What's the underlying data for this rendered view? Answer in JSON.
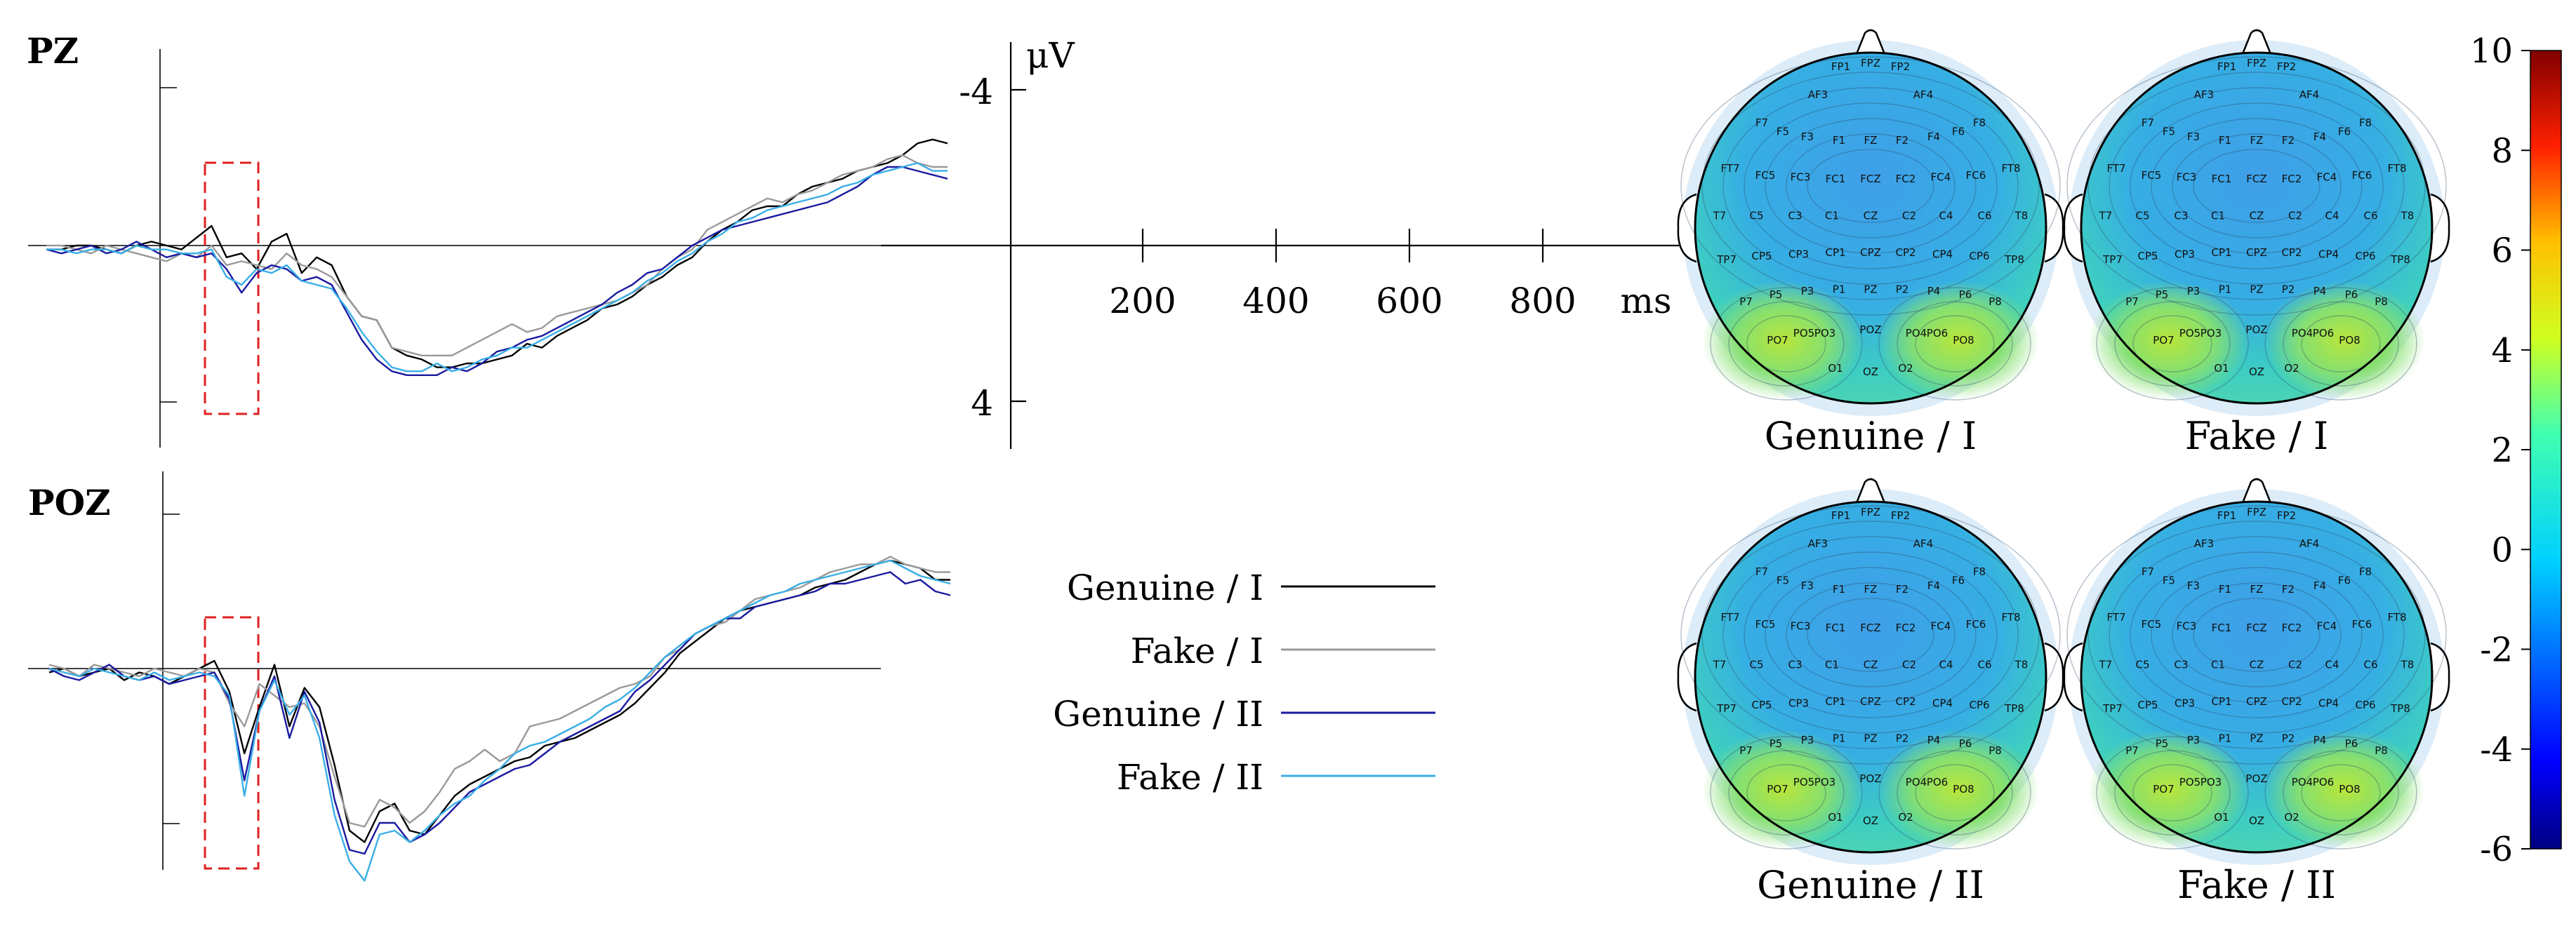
{
  "chart_data": [
    {
      "type": "line",
      "channel": "PZ",
      "x_unit": "ms",
      "y_unit": "μV",
      "y_inverted": true,
      "time_ms": [
        -200,
        -180,
        -160,
        -140,
        -120,
        -100,
        -80,
        -60,
        -40,
        -20,
        0,
        20,
        40,
        60,
        80,
        100,
        120,
        140,
        160,
        180,
        200,
        220,
        240,
        260,
        280,
        300,
        320,
        340,
        360,
        380,
        400,
        420,
        440,
        460,
        480,
        500,
        520,
        540,
        560,
        580,
        600,
        620,
        640,
        660,
        680,
        700,
        720,
        740,
        760,
        780,
        800,
        820,
        840,
        860,
        880,
        900,
        920,
        940,
        960,
        980,
        1000
      ],
      "highlight_window_ms": [
        70,
        150
      ],
      "series": [
        {
          "name": "Genuine / I",
          "color": "#000000",
          "values": [
            0.1,
            0.1,
            0.0,
            0.0,
            0.1,
            0.2,
            0.0,
            -0.1,
            0.0,
            0.1,
            -0.2,
            -0.5,
            0.3,
            0.2,
            0.6,
            -0.1,
            -0.3,
            0.7,
            0.3,
            0.5,
            1.3,
            1.8,
            1.9,
            2.6,
            2.8,
            2.9,
            3.1,
            3.1,
            3.0,
            3.0,
            2.9,
            2.8,
            2.5,
            2.6,
            2.3,
            2.1,
            1.9,
            1.6,
            1.5,
            1.3,
            1.0,
            0.8,
            0.5,
            0.3,
            -0.1,
            -0.4,
            -0.6,
            -0.9,
            -1.0,
            -1.0,
            -1.3,
            -1.5,
            -1.6,
            -1.7,
            -1.9,
            -2.0,
            -2.1,
            -2.3,
            -2.6,
            -2.7,
            -2.6
          ]
        },
        {
          "name": "Fake / I",
          "color": "#9a9a9a",
          "values": [
            0.0,
            0.0,
            0.1,
            0.2,
            0.0,
            0.1,
            0.2,
            0.3,
            0.4,
            0.2,
            0.3,
            0.0,
            0.5,
            0.4,
            0.5,
            0.6,
            0.2,
            0.5,
            0.6,
            0.8,
            1.3,
            1.8,
            1.9,
            2.6,
            2.7,
            2.8,
            2.8,
            2.8,
            2.6,
            2.4,
            2.2,
            2.0,
            2.2,
            2.1,
            1.8,
            1.7,
            1.6,
            1.5,
            1.4,
            1.2,
            1.0,
            0.6,
            0.3,
            0.1,
            -0.4,
            -0.6,
            -0.8,
            -1.0,
            -1.2,
            -1.1,
            -1.3,
            -1.4,
            -1.6,
            -1.8,
            -1.9,
            -2.0,
            -2.2,
            -2.3,
            -2.1,
            -2.0,
            -2.0
          ]
        },
        {
          "name": "Genuine / II",
          "color": "#1a1aa0",
          "values": [
            0.1,
            0.2,
            0.1,
            0.0,
            0.2,
            0.1,
            -0.1,
            0.1,
            0.3,
            0.2,
            0.3,
            0.2,
            0.6,
            1.2,
            0.7,
            0.5,
            0.6,
            0.9,
            0.8,
            1.0,
            1.7,
            2.4,
            2.9,
            3.2,
            3.3,
            3.3,
            3.3,
            3.1,
            3.2,
            3.0,
            2.7,
            2.6,
            2.4,
            2.3,
            2.1,
            1.9,
            1.7,
            1.5,
            1.2,
            1.0,
            0.7,
            0.6,
            0.3,
            0.0,
            -0.2,
            -0.4,
            -0.5,
            -0.6,
            -0.7,
            -0.8,
            -0.9,
            -1.0,
            -1.1,
            -1.3,
            -1.5,
            -1.8,
            -2.0,
            -2.0,
            -1.9,
            -1.8,
            -1.7
          ]
        },
        {
          "name": "Fake / II",
          "color": "#3aaee6",
          "values": [
            0.1,
            0.1,
            0.2,
            0.1,
            0.1,
            0.2,
            0.0,
            0.1,
            0.1,
            0.2,
            0.2,
            0.1,
            0.8,
            1.0,
            0.6,
            0.7,
            0.5,
            0.9,
            1.0,
            1.1,
            1.6,
            2.2,
            2.7,
            3.1,
            3.2,
            3.2,
            3.0,
            3.2,
            3.1,
            2.9,
            2.8,
            2.6,
            2.6,
            2.4,
            2.2,
            2.0,
            1.8,
            1.6,
            1.4,
            1.2,
            0.9,
            0.7,
            0.4,
            0.2,
            -0.1,
            -0.3,
            -0.6,
            -0.7,
            -0.9,
            -1.0,
            -1.1,
            -1.2,
            -1.3,
            -1.5,
            -1.6,
            -1.8,
            -1.9,
            -2.0,
            -2.1,
            -1.9,
            -1.9
          ]
        }
      ]
    },
    {
      "type": "line",
      "channel": "POZ",
      "x_unit": "ms",
      "y_unit": "μV",
      "y_inverted": true,
      "time_ms": [
        -200,
        -180,
        -160,
        -140,
        -120,
        -100,
        -80,
        -60,
        -40,
        -20,
        0,
        20,
        40,
        60,
        80,
        100,
        120,
        140,
        160,
        180,
        200,
        220,
        240,
        260,
        280,
        300,
        320,
        340,
        360,
        380,
        400,
        420,
        440,
        460,
        480,
        500,
        520,
        540,
        560,
        580,
        600,
        620,
        640,
        660,
        680,
        700,
        720,
        740,
        760,
        780,
        800,
        820,
        840,
        860,
        880,
        900,
        920,
        940,
        960,
        980,
        1000
      ],
      "highlight_window_ms": [
        70,
        150
      ],
      "series": [
        {
          "name": "Genuine / I",
          "color": "#000000",
          "values": [
            0.1,
            0.0,
            0.2,
            0.1,
            0.0,
            0.3,
            0.1,
            0.2,
            0.4,
            0.2,
            0.0,
            -0.2,
            0.6,
            2.2,
            1.0,
            -0.1,
            1.5,
            0.5,
            1.0,
            2.5,
            4.2,
            4.5,
            3.7,
            3.5,
            4.2,
            4.3,
            3.8,
            3.3,
            3.0,
            2.8,
            2.6,
            2.4,
            2.3,
            2.0,
            1.9,
            1.8,
            1.6,
            1.4,
            1.2,
            0.9,
            0.5,
            0.1,
            -0.4,
            -0.7,
            -1.0,
            -1.3,
            -1.5,
            -1.6,
            -1.7,
            -1.8,
            -1.9,
            -2.1,
            -2.2,
            -2.3,
            -2.5,
            -2.7,
            -2.8,
            -2.7,
            -2.6,
            -2.3,
            -2.3
          ]
        },
        {
          "name": "Fake / I",
          "color": "#9a9a9a",
          "values": [
            -0.1,
            0.0,
            0.2,
            -0.1,
            0.0,
            0.1,
            0.2,
            0.0,
            0.1,
            0.2,
            0.0,
            0.1,
            0.9,
            1.5,
            0.4,
            0.7,
            1.0,
            0.9,
            1.5,
            2.8,
            4.0,
            4.1,
            3.4,
            3.6,
            4.0,
            3.7,
            3.2,
            2.6,
            2.4,
            2.1,
            2.4,
            2.2,
            1.5,
            1.4,
            1.3,
            1.1,
            0.9,
            0.7,
            0.5,
            0.4,
            0.2,
            -0.3,
            -0.5,
            -0.9,
            -1.1,
            -1.2,
            -1.5,
            -1.8,
            -1.9,
            -2.0,
            -2.1,
            -2.3,
            -2.5,
            -2.6,
            -2.7,
            -2.7,
            -2.9,
            -2.7,
            -2.6,
            -2.5,
            -2.5
          ]
        },
        {
          "name": "Genuine / II",
          "color": "#1a1aa0",
          "values": [
            0.0,
            0.2,
            0.3,
            0.1,
            -0.1,
            0.2,
            0.3,
            0.2,
            0.4,
            0.3,
            0.2,
            0.1,
            0.8,
            2.9,
            1.1,
            0.2,
            1.8,
            0.6,
            1.4,
            3.4,
            4.7,
            4.8,
            4.0,
            4.0,
            4.5,
            4.3,
            4.0,
            3.6,
            3.2,
            3.0,
            2.8,
            2.6,
            2.5,
            2.2,
            1.9,
            1.7,
            1.5,
            1.3,
            1.1,
            0.6,
            0.3,
            -0.1,
            -0.5,
            -0.9,
            -1.1,
            -1.3,
            -1.3,
            -1.6,
            -1.7,
            -1.8,
            -1.9,
            -2.0,
            -2.2,
            -2.2,
            -2.3,
            -2.4,
            -2.5,
            -2.2,
            -2.3,
            -2.0,
            -1.9
          ]
        },
        {
          "name": "Fake / II",
          "color": "#3aaee6",
          "values": [
            0.0,
            0.1,
            0.2,
            0.0,
            0.1,
            0.2,
            0.3,
            0.1,
            0.3,
            0.2,
            0.1,
            0.2,
            0.7,
            3.3,
            1.1,
            0.3,
            1.2,
            0.7,
            1.8,
            3.8,
            5.0,
            5.5,
            4.3,
            4.2,
            4.5,
            4.2,
            3.8,
            3.5,
            3.3,
            2.9,
            2.6,
            2.2,
            2.0,
            1.9,
            1.7,
            1.5,
            1.3,
            1.0,
            0.8,
            0.5,
            0.1,
            -0.3,
            -0.6,
            -0.9,
            -1.1,
            -1.3,
            -1.5,
            -1.7,
            -1.9,
            -2.0,
            -2.2,
            -2.3,
            -2.4,
            -2.5,
            -2.6,
            -2.7,
            -2.8,
            -2.6,
            -2.4,
            -2.3,
            -2.2
          ]
        }
      ]
    },
    {
      "type": "axis_key",
      "y_unit": "μV",
      "y_ticks": [
        "-4",
        "4"
      ],
      "x_ticks": [
        "200",
        "400",
        "600",
        "800"
      ],
      "x_unit": "ms"
    },
    {
      "type": "heatmap",
      "subtype": "topographic_scalp_maps",
      "colorbar": {
        "min": -6,
        "max": 10,
        "ticks": [
          "10",
          "8",
          "6",
          "4",
          "2",
          "0",
          "-2",
          "-4",
          "-6"
        ]
      },
      "maps": [
        {
          "label": "Genuine / I"
        },
        {
          "label": "Fake / I"
        },
        {
          "label": "Genuine / II"
        },
        {
          "label": "Fake / II"
        }
      ],
      "electrodes": [
        "FP1",
        "FPZ",
        "FP2",
        "AF3",
        "AF4",
        "F7",
        "F5",
        "F3",
        "F1",
        "FZ",
        "F2",
        "F4",
        "F6",
        "F8",
        "FT7",
        "FC5",
        "FC3",
        "FC1",
        "FCZ",
        "FC2",
        "FC4",
        "FC6",
        "FT8",
        "T7",
        "C5",
        "C3",
        "C1",
        "CZ",
        "C2",
        "C4",
        "C6",
        "T8",
        "TP7",
        "CP5",
        "CP3",
        "CP1",
        "CPZ",
        "CP2",
        "CP4",
        "CP6",
        "TP8",
        "P7",
        "P5",
        "P3",
        "P1",
        "PZ",
        "P2",
        "P4",
        "P6",
        "P8",
        "PO7",
        "PO5",
        "PO3",
        "POZ",
        "PO4",
        "PO6",
        "PO8",
        "O1",
        "OZ",
        "O2"
      ]
    }
  ],
  "legend": {
    "entries": [
      {
        "label": "Genuine / I",
        "color": "#000000"
      },
      {
        "label": "Fake / I",
        "color": "#9a9a9a"
      },
      {
        "label": "Genuine / II",
        "color": "#1a1aa0"
      },
      {
        "label": "Fake / II",
        "color": "#3aaee6"
      }
    ]
  },
  "colors": {
    "highlight_box": "#e02020"
  }
}
